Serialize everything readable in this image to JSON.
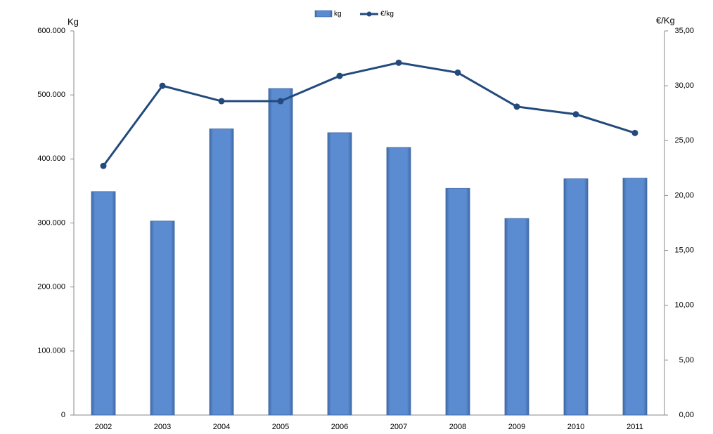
{
  "chart_data": {
    "type": "bar",
    "categories": [
      "2002",
      "2003",
      "2004",
      "2005",
      "2006",
      "2007",
      "2008",
      "2009",
      "2010",
      "2011"
    ],
    "series": [
      {
        "name": "kg",
        "type": "bar",
        "color": "#5b8bd0",
        "values": [
          349000,
          303000,
          447000,
          510000,
          441000,
          418000,
          354000,
          307000,
          369000,
          370000
        ]
      },
      {
        "name": "€/kg",
        "type": "line",
        "axis": "y2",
        "color": "#234a7c",
        "values": [
          22.7,
          30.0,
          28.6,
          28.6,
          30.9,
          32.1,
          31.2,
          28.1,
          27.4,
          25.7
        ]
      }
    ],
    "y_label": "Kg",
    "y2_label": "€/Kg",
    "ylim": [
      0,
      600000
    ],
    "yticks": [
      0,
      {
        "value": 100000,
        "label": "100.000"
      },
      {
        "value": 200000,
        "label": "200.000"
      },
      {
        "value": 300000,
        "label": "300.000"
      },
      {
        "value": 400000,
        "label": "400.000"
      },
      {
        "value": 500000,
        "label": "500.000"
      },
      {
        "value": 600000,
        "label": "600.000"
      }
    ],
    "y2lim": [
      0,
      35
    ],
    "y2ticks": [
      {
        "value": 0,
        "label": "0,00"
      },
      {
        "value": 5,
        "label": "5,00"
      },
      {
        "value": 10,
        "label": "10,00"
      },
      {
        "value": 15,
        "label": "15,00"
      },
      {
        "value": 20,
        "label": "20,00"
      },
      {
        "value": 25,
        "label": "25,00"
      },
      {
        "value": 30,
        "label": "30,00"
      },
      {
        "value": 35,
        "label": "35,00"
      }
    ],
    "grid": false,
    "legend": "top"
  }
}
